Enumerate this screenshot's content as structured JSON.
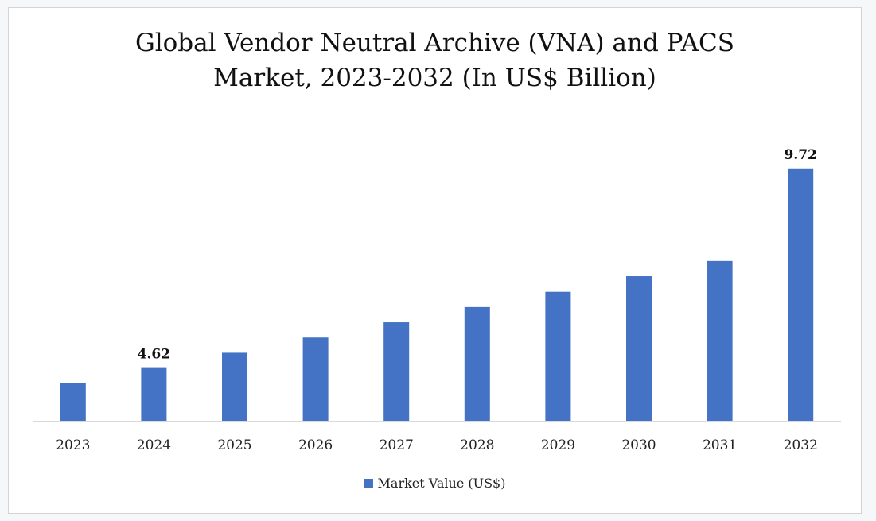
{
  "chart_data": {
    "type": "bar",
    "title": "Global Vendor Neutral Archive (VNA) and PACS\nMarket, 2023-2032 (In US$ Billion)",
    "categories": [
      "2023",
      "2024",
      "2025",
      "2026",
      "2027",
      "2028",
      "2029",
      "2030",
      "2031",
      "2032"
    ],
    "series": [
      {
        "name": "Market Value (US$)",
        "values": [
          4.23,
          4.62,
          5.01,
          5.4,
          5.79,
          6.18,
          6.57,
          6.97,
          7.36,
          9.72
        ],
        "color": "#4472c4"
      }
    ],
    "data_labels": [
      {
        "category": "2024",
        "label": "4.62"
      },
      {
        "category": "2032",
        "label": "9.72"
      }
    ],
    "xlabel": "",
    "ylabel": "",
    "ylim": [
      3.27,
      10.0
    ],
    "grid": false,
    "legend_position": "bottom"
  }
}
